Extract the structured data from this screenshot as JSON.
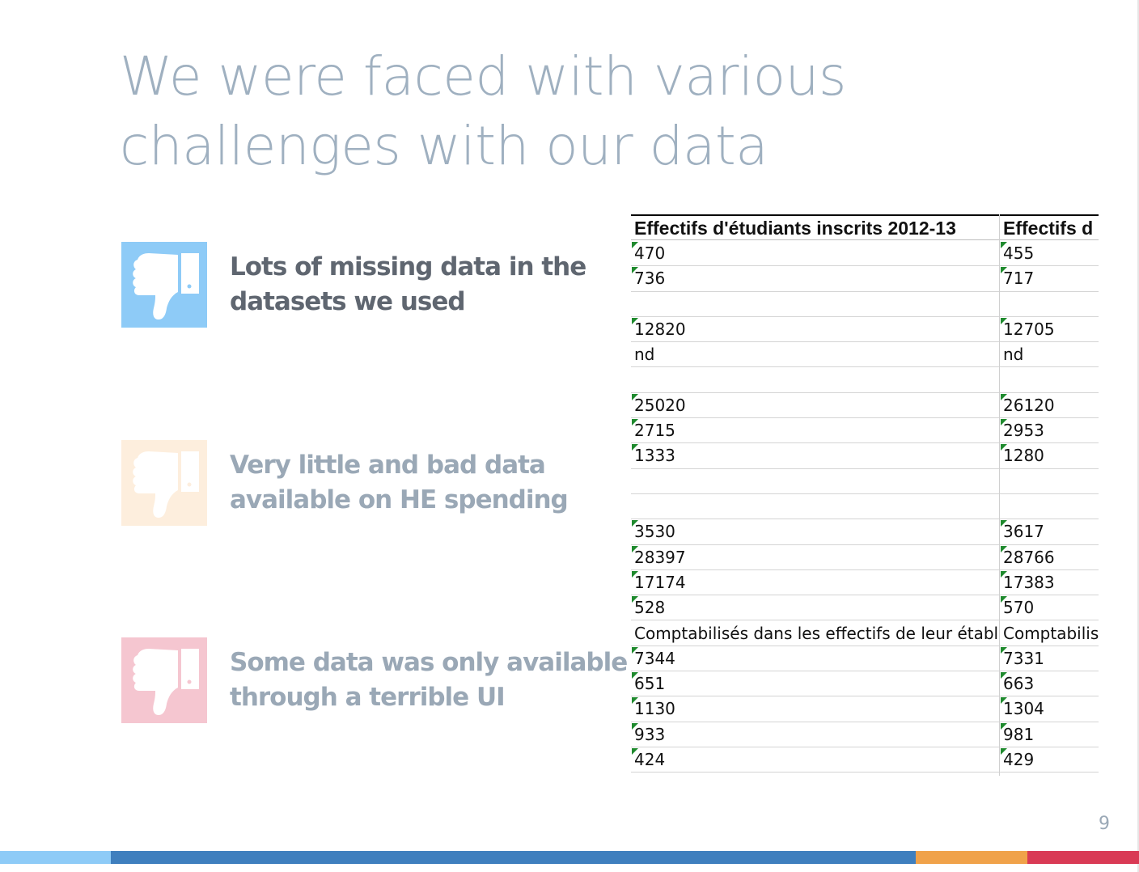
{
  "slide": {
    "title_lines": [
      "We were faced with various",
      "challenges with our data"
    ],
    "page_number": "9"
  },
  "bullets": [
    {
      "lines": [
        "Lots of missing data in the",
        "datasets we used"
      ],
      "icon": "thumbs-down-icon",
      "icon_color": "#8ecbf7"
    },
    {
      "lines": [
        "Very little and bad data",
        "available on HE spending"
      ],
      "icon": "thumbs-down-icon",
      "icon_color": "#fdeedd"
    },
    {
      "lines": [
        "Some data was only available",
        "through a terrible UI"
      ],
      "icon": "thumbs-down-icon",
      "icon_color": "#f5c6d0"
    }
  ],
  "spreadsheet": {
    "headers": [
      "Effectifs d'étudiants inscrits 2012-13",
      "Effectifs d"
    ],
    "rows": [
      {
        "c1": "470",
        "c2": "455",
        "flag": true
      },
      {
        "c1": "736",
        "c2": "717",
        "flag": true
      },
      {
        "c1": "",
        "c2": "",
        "flag": false
      },
      {
        "c1": "12820",
        "c2": "12705",
        "flag": true
      },
      {
        "c1": "nd",
        "c2": "nd",
        "flag": false
      },
      {
        "c1": "",
        "c2": "",
        "flag": false
      },
      {
        "c1": "25020",
        "c2": "26120",
        "flag": true
      },
      {
        "c1": "2715",
        "c2": "2953",
        "flag": true
      },
      {
        "c1": "1333",
        "c2": "1280",
        "flag": true
      },
      {
        "c1": "",
        "c2": "",
        "flag": false
      },
      {
        "c1": "",
        "c2": "",
        "flag": false
      },
      {
        "c1": "3530",
        "c2": "3617",
        "flag": true
      },
      {
        "c1": "28397",
        "c2": "28766",
        "flag": true
      },
      {
        "c1": "17174",
        "c2": "17383",
        "flag": true
      },
      {
        "c1": "528",
        "c2": "570",
        "flag": true
      },
      {
        "c1": "Comptabilisés dans les effectifs de leur établis",
        "c2": "Comptabilisé",
        "flag": false
      },
      {
        "c1": "7344",
        "c2": "7331",
        "flag": true
      },
      {
        "c1": "651",
        "c2": "663",
        "flag": true
      },
      {
        "c1": "1130",
        "c2": "1304",
        "flag": true
      },
      {
        "c1": "933",
        "c2": "981",
        "flag": true
      },
      {
        "c1": "424",
        "c2": "429",
        "flag": true
      }
    ]
  },
  "colors": {
    "title": "#9fb0c0",
    "footer": [
      "#8ecbf7",
      "#3f7fbe",
      "#f0a24a",
      "#d93a55"
    ]
  }
}
